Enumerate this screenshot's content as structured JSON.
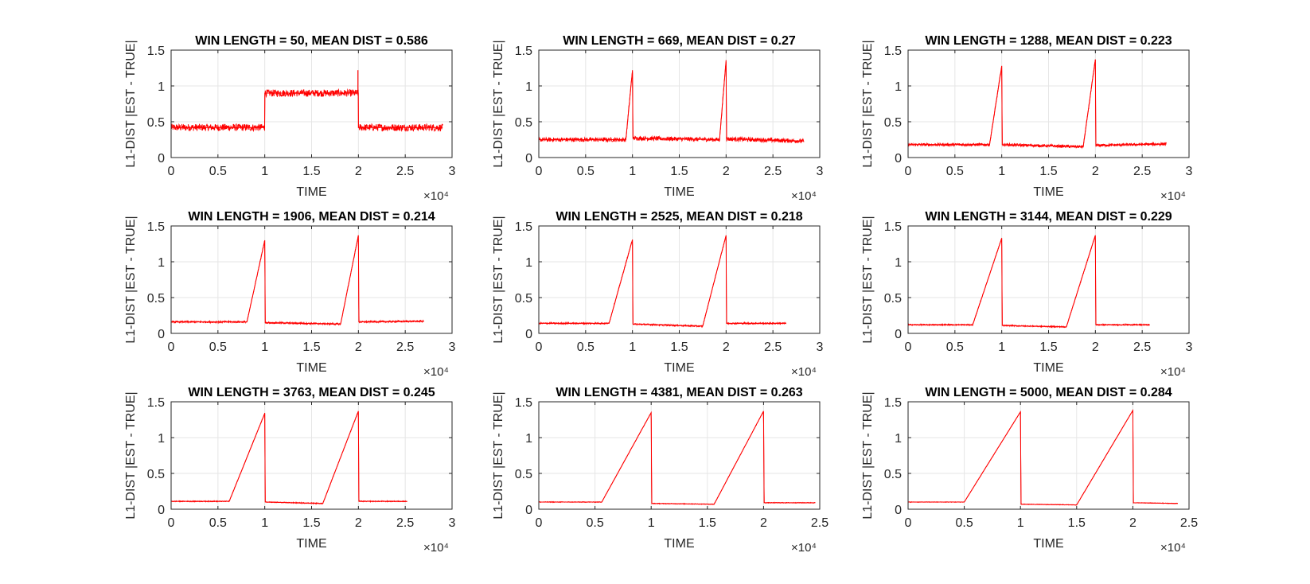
{
  "figure": {
    "background": "#ffffff",
    "line_color": "#ff0000",
    "grid_color": "#e6e6e6",
    "axis_color": "#262626"
  },
  "chart_data": [
    {
      "type": "line",
      "title": "WIN LENGTH = 50, MEAN DIST = 0.586",
      "xlabel": "TIME",
      "ylabel": "L1-DIST |EST - TRUE|",
      "x_exponent_label": "×10⁴",
      "xlim": [
        0,
        3
      ],
      "ylim": [
        0,
        1.5
      ],
      "x_ticks": [
        "0",
        "0.5",
        "1",
        "1.5",
        "2",
        "2.5",
        "3"
      ],
      "y_ticks": [
        "0",
        "0.5",
        "1",
        "1.5"
      ],
      "grid": true,
      "noise": 0.05,
      "x": [
        0,
        0.999,
        1.0,
        1.999,
        2.0,
        2.9
      ],
      "y": [
        0.42,
        0.42,
        0.9,
        0.9,
        0.42,
        0.42
      ],
      "spikes": [
        {
          "x": 1.995,
          "y": 1.22
        }
      ]
    },
    {
      "type": "line",
      "title": "WIN LENGTH = 669, MEAN DIST = 0.27",
      "xlabel": "TIME",
      "ylabel": "L1-DIST |EST - TRUE|",
      "x_exponent_label": "×10⁴",
      "xlim": [
        0,
        3
      ],
      "ylim": [
        0,
        1.5
      ],
      "x_ticks": [
        "0",
        "0.5",
        "1",
        "1.5",
        "2",
        "2.5",
        "3"
      ],
      "y_ticks": [
        "0",
        "0.5",
        "1",
        "1.5"
      ],
      "grid": true,
      "noise": 0.03,
      "x": [
        0,
        0.93,
        1.0,
        1.005,
        1.93,
        2.0,
        2.005,
        2.83
      ],
      "y": [
        0.25,
        0.25,
        1.22,
        0.27,
        0.25,
        1.36,
        0.26,
        0.23
      ],
      "spikes": []
    },
    {
      "type": "line",
      "title": "WIN LENGTH = 1288, MEAN DIST = 0.223",
      "xlabel": "TIME",
      "ylabel": "L1-DIST |EST - TRUE|",
      "x_exponent_label": "×10⁴",
      "xlim": [
        0,
        3
      ],
      "ylim": [
        0,
        1.5
      ],
      "x_ticks": [
        "0",
        "0.5",
        "1",
        "1.5",
        "2",
        "2.5",
        "3"
      ],
      "y_ticks": [
        "0",
        "0.5",
        "1",
        "1.5"
      ],
      "grid": true,
      "noise": 0.02,
      "x": [
        0,
        0.87,
        1.0,
        1.005,
        1.87,
        2.0,
        2.005,
        2.76
      ],
      "y": [
        0.18,
        0.18,
        1.28,
        0.18,
        0.15,
        1.37,
        0.17,
        0.19
      ],
      "spikes": []
    },
    {
      "type": "line",
      "title": "WIN LENGTH = 1906, MEAN DIST = 0.214",
      "xlabel": "TIME",
      "ylabel": "L1-DIST |EST - TRUE|",
      "x_exponent_label": "×10⁴",
      "xlim": [
        0,
        3
      ],
      "ylim": [
        0,
        1.5
      ],
      "x_ticks": [
        "0",
        "0.5",
        "1",
        "1.5",
        "2",
        "2.5",
        "3"
      ],
      "y_ticks": [
        "0",
        "0.5",
        "1",
        "1.5"
      ],
      "grid": true,
      "noise": 0.012,
      "x": [
        0,
        0.81,
        1.0,
        1.005,
        1.81,
        2.0,
        2.005,
        2.7
      ],
      "y": [
        0.16,
        0.16,
        1.3,
        0.15,
        0.13,
        1.37,
        0.16,
        0.17
      ],
      "spikes": []
    },
    {
      "type": "line",
      "title": "WIN LENGTH = 2525, MEAN DIST = 0.218",
      "xlabel": "TIME",
      "ylabel": "L1-DIST |EST - TRUE|",
      "x_exponent_label": "×10⁴",
      "xlim": [
        0,
        3
      ],
      "ylim": [
        0,
        1.5
      ],
      "x_ticks": [
        "0",
        "0.5",
        "1",
        "1.5",
        "2",
        "2.5",
        "3"
      ],
      "y_ticks": [
        "0",
        "0.5",
        "1",
        "1.5"
      ],
      "grid": true,
      "noise": 0.01,
      "x": [
        0,
        0.75,
        1.0,
        1.005,
        1.75,
        2.0,
        2.005,
        2.64
      ],
      "y": [
        0.14,
        0.14,
        1.31,
        0.13,
        0.1,
        1.37,
        0.14,
        0.14
      ],
      "spikes": []
    },
    {
      "type": "line",
      "title": "WIN LENGTH = 3144, MEAN DIST = 0.229",
      "xlabel": "TIME",
      "ylabel": "L1-DIST |EST - TRUE|",
      "x_exponent_label": "×10⁴",
      "xlim": [
        0,
        3
      ],
      "ylim": [
        0,
        1.5
      ],
      "x_ticks": [
        "0",
        "0.5",
        "1",
        "1.5",
        "2",
        "2.5",
        "3"
      ],
      "y_ticks": [
        "0",
        "0.5",
        "1",
        "1.5"
      ],
      "grid": true,
      "noise": 0.008,
      "x": [
        0,
        0.69,
        1.0,
        1.005,
        1.69,
        2.0,
        2.005,
        2.58
      ],
      "y": [
        0.12,
        0.12,
        1.33,
        0.11,
        0.09,
        1.37,
        0.12,
        0.12
      ],
      "spikes": []
    },
    {
      "type": "line",
      "title": "WIN LENGTH = 3763, MEAN DIST = 0.245",
      "xlabel": "TIME",
      "ylabel": "L1-DIST |EST - TRUE|",
      "x_exponent_label": "×10⁴",
      "xlim": [
        0,
        3
      ],
      "ylim": [
        0,
        1.5
      ],
      "x_ticks": [
        "0",
        "0.5",
        "1",
        "1.5",
        "2",
        "2.5",
        "3"
      ],
      "y_ticks": [
        "0",
        "0.5",
        "1",
        "1.5"
      ],
      "grid": true,
      "noise": 0.006,
      "x": [
        0,
        0.62,
        1.0,
        1.005,
        1.62,
        2.0,
        2.005,
        2.52
      ],
      "y": [
        0.11,
        0.11,
        1.34,
        0.1,
        0.08,
        1.37,
        0.11,
        0.11
      ],
      "spikes": []
    },
    {
      "type": "line",
      "title": "WIN LENGTH = 4381, MEAN DIST = 0.263",
      "xlabel": "TIME",
      "ylabel": "L1-DIST |EST - TRUE|",
      "x_exponent_label": "×10⁴",
      "xlim": [
        0,
        2.5
      ],
      "ylim": [
        0,
        1.5
      ],
      "x_ticks": [
        "0",
        "0.5",
        "1",
        "1.5",
        "2",
        "2.5"
      ],
      "y_ticks": [
        "0",
        "0.5",
        "1",
        "1.5"
      ],
      "grid": true,
      "noise": 0.005,
      "x": [
        0,
        0.56,
        1.0,
        1.005,
        1.56,
        2.0,
        2.005,
        2.46
      ],
      "y": [
        0.1,
        0.1,
        1.35,
        0.08,
        0.07,
        1.37,
        0.09,
        0.09
      ],
      "spikes": []
    },
    {
      "type": "line",
      "title": "WIN LENGTH = 5000, MEAN DIST = 0.284",
      "xlabel": "TIME",
      "ylabel": "L1-DIST |EST - TRUE|",
      "x_exponent_label": "×10⁴",
      "xlim": [
        0,
        2.5
      ],
      "ylim": [
        0,
        1.5
      ],
      "x_ticks": [
        "0",
        "0.5",
        "1",
        "1.5",
        "2",
        "2.5"
      ],
      "y_ticks": [
        "0",
        "0.5",
        "1",
        "1.5"
      ],
      "grid": true,
      "noise": 0.004,
      "x": [
        0,
        0.5,
        1.0,
        1.005,
        1.5,
        2.0,
        2.005,
        2.4
      ],
      "y": [
        0.1,
        0.1,
        1.36,
        0.07,
        0.06,
        1.38,
        0.09,
        0.08
      ],
      "spikes": []
    }
  ]
}
